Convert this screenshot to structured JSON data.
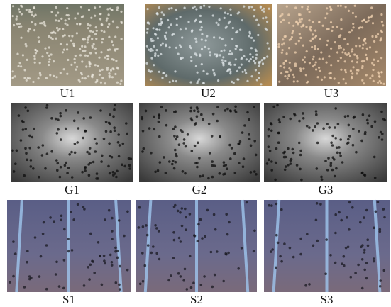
{
  "figure": {
    "panels": [
      {
        "label": "U1"
      },
      {
        "label": "U2"
      },
      {
        "label": "U3"
      },
      {
        "label": "G1"
      },
      {
        "label": "G2"
      },
      {
        "label": "G3"
      },
      {
        "label": "S1"
      },
      {
        "label": "S2"
      },
      {
        "label": "S3"
      }
    ]
  }
}
